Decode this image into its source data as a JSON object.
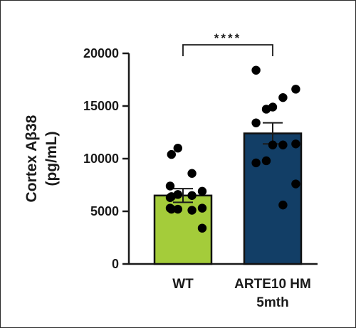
{
  "chart_data": {
    "type": "bar",
    "categories": [
      "WT",
      "ARTE10 HM\n5mth"
    ],
    "values": [
      6500,
      12400
    ],
    "error": [
      650,
      1000
    ],
    "bar_colors": [
      "#a4cc3a",
      "#123e66"
    ],
    "points": [
      [
        11000,
        10400,
        8600,
        7400,
        6900,
        6600,
        6400,
        6500,
        6300,
        5300,
        5200,
        5200,
        5100,
        5300,
        3400
      ],
      [
        18400,
        16600,
        15800,
        14900,
        14700,
        13400,
        11400,
        11300,
        11300,
        9800,
        9600,
        7600,
        5600
      ]
    ],
    "ylabel": "Cortex Aβ38\n(pg/mL)",
    "ylim": [
      0,
      20000
    ],
    "yticks": [
      0,
      5000,
      10000,
      15000,
      20000
    ],
    "significance": {
      "label": "****",
      "between": [
        0,
        1
      ]
    }
  }
}
